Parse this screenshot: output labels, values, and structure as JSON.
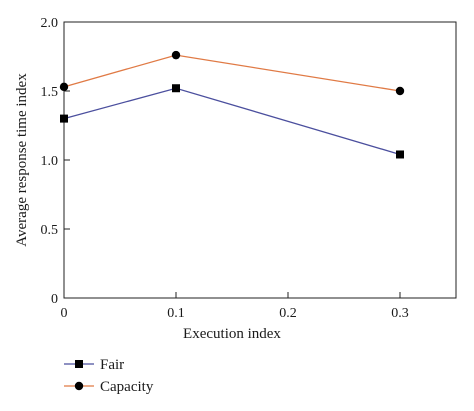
{
  "chart_data": {
    "type": "line",
    "xlabel": "Execution index",
    "ylabel": "Average response time index",
    "x": [
      0,
      0.1,
      0.3
    ],
    "xlim": [
      0,
      0.35
    ],
    "ylim": [
      0,
      2.0
    ],
    "xticks": [
      "0",
      "0.1",
      "0.2",
      "0.3"
    ],
    "xtick_values": [
      0,
      0.1,
      0.2,
      0.3
    ],
    "yticks": [
      "0",
      "0.5",
      "1.0",
      "1.5",
      "2.0"
    ],
    "ytick_values": [
      0,
      0.5,
      1.0,
      1.5,
      2.0
    ],
    "grid": false,
    "legend_position": "bottom-left, below plot",
    "series": [
      {
        "name": "Fair",
        "values": [
          1.3,
          1.52,
          1.04
        ],
        "color": "#4b4f9e",
        "marker": "square"
      },
      {
        "name": "Capacity",
        "values": [
          1.53,
          1.76,
          1.5
        ],
        "color": "#e07a45",
        "marker": "circle"
      }
    ]
  }
}
